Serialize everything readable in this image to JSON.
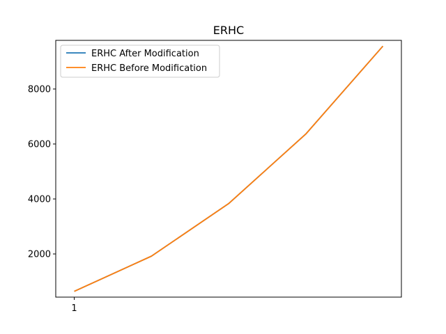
{
  "chart_data": {
    "type": "line",
    "title": "ERHC",
    "xlabel": "",
    "ylabel": "",
    "x": [
      1,
      2,
      3,
      4,
      5
    ],
    "x_ticks": [
      "1"
    ],
    "xlim": [
      0.76,
      5.24
    ],
    "ylim": [
      430,
      9770
    ],
    "y_ticks": [
      2000,
      4000,
      6000,
      8000
    ],
    "y_tick_labels": [
      "2000",
      "4000",
      "6000",
      "8000"
    ],
    "series": [
      {
        "name": "ERHC After Modification",
        "color": "#1f77b4",
        "values": [
          640,
          1920,
          3830,
          6360,
          9560
        ]
      },
      {
        "name": "ERHC Before Modification",
        "color": "#ff7f0e",
        "values": [
          640,
          1920,
          3830,
          6360,
          9560
        ]
      }
    ],
    "legend_position": "top-left",
    "grid": false
  }
}
